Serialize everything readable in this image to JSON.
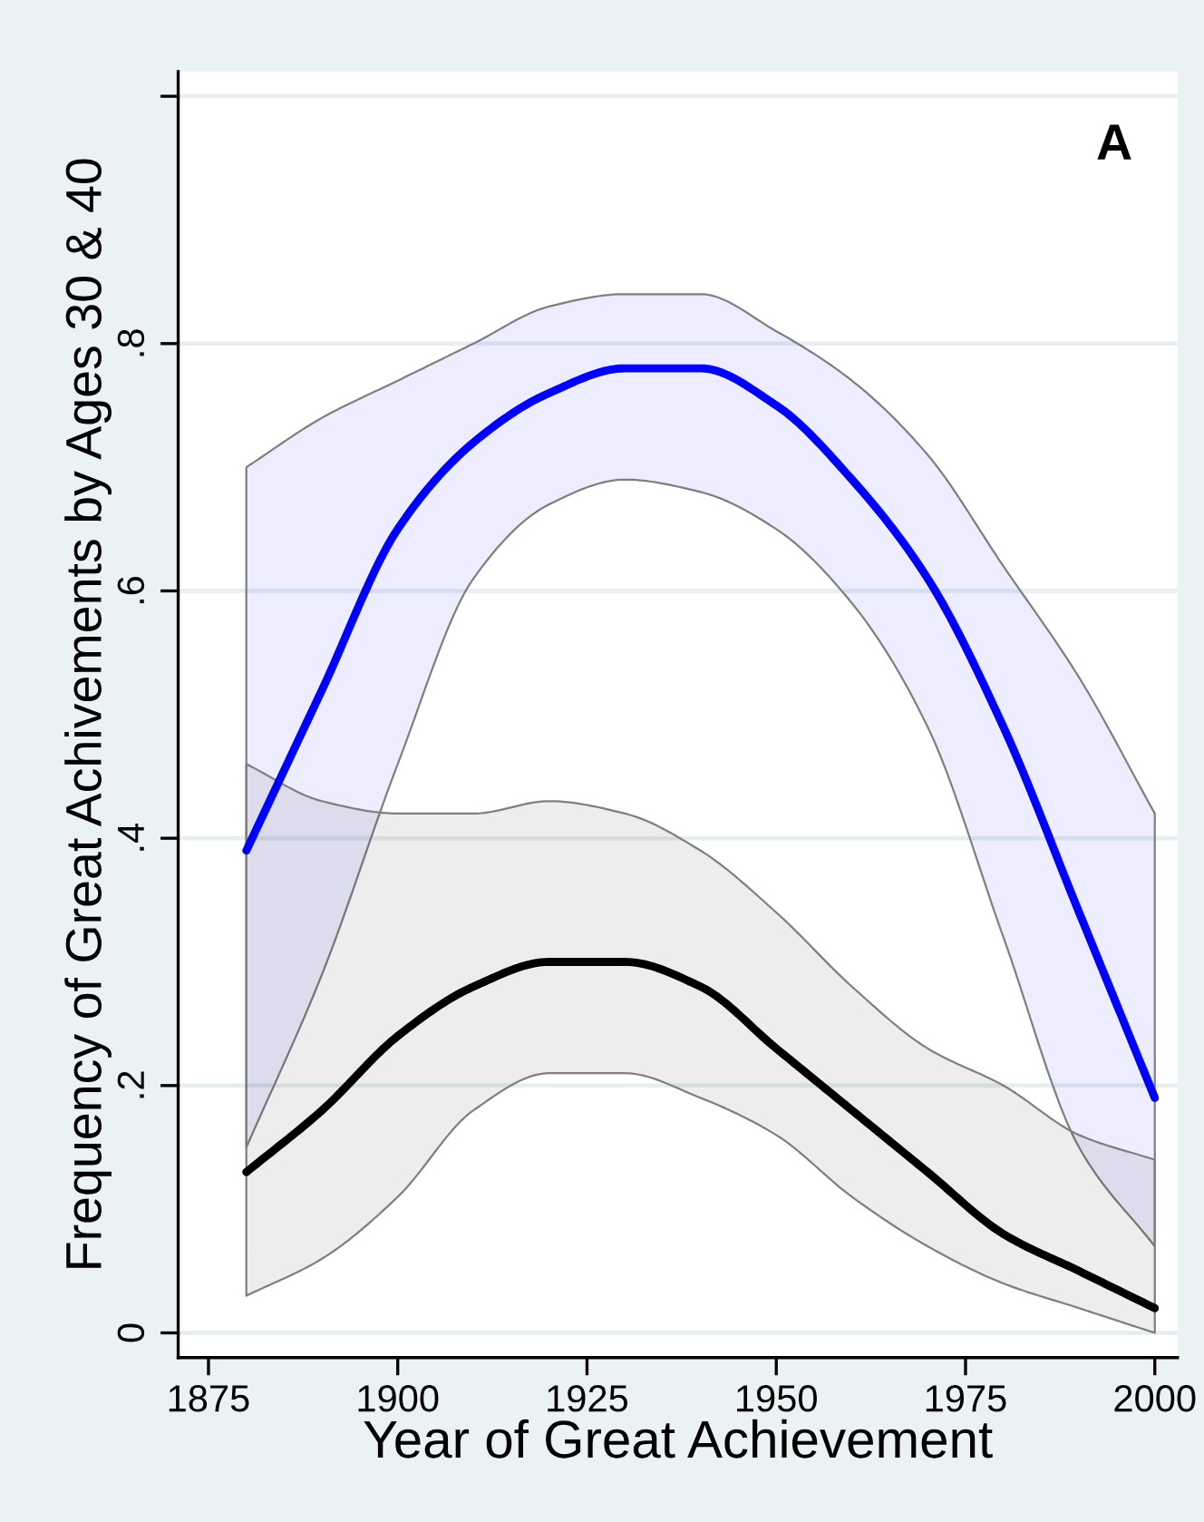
{
  "chart_data": {
    "type": "line",
    "xlabel": "Year of Great Achievement",
    "ylabel": "Frequency of Great Achivements by Ages 30 & 40",
    "x": [
      1880,
      1890,
      1900,
      1910,
      1920,
      1930,
      1940,
      1950,
      1960,
      1970,
      1980,
      1990,
      2000
    ],
    "series": [
      {
        "color": "#0000ff",
        "values": [
          0.39,
          0.52,
          0.65,
          0.72,
          0.76,
          0.78,
          0.78,
          0.75,
          0.69,
          0.61,
          0.49,
          0.34,
          0.19
        ],
        "lower": [
          0.15,
          0.29,
          0.46,
          0.61,
          0.67,
          0.69,
          0.68,
          0.65,
          0.59,
          0.49,
          0.32,
          0.15,
          0.07
        ],
        "upper": [
          0.7,
          0.74,
          0.77,
          0.8,
          0.83,
          0.84,
          0.84,
          0.81,
          0.77,
          0.71,
          0.62,
          0.53,
          0.42
        ]
      },
      {
        "color": "#000000",
        "values": [
          0.13,
          0.18,
          0.24,
          0.28,
          0.3,
          0.3,
          0.28,
          0.23,
          0.18,
          0.13,
          0.08,
          0.05,
          0.02
        ],
        "lower": [
          0.03,
          0.06,
          0.11,
          0.18,
          0.21,
          0.21,
          0.19,
          0.16,
          0.11,
          0.07,
          0.04,
          0.02,
          0.0
        ],
        "upper": [
          0.46,
          0.43,
          0.42,
          0.42,
          0.43,
          0.42,
          0.39,
          0.34,
          0.28,
          0.23,
          0.2,
          0.16,
          0.14
        ]
      }
    ],
    "xlim": [
      1871,
      2003
    ],
    "xticks": [
      1875,
      1900,
      1925,
      1950,
      1975,
      2000
    ],
    "ylim": [
      -0.02,
      1.02
    ],
    "yticks": [
      {
        "value": 0,
        "label": "0"
      },
      {
        "value": 0.2,
        "label": ".2"
      },
      {
        "value": 0.4,
        "label": ".4"
      },
      {
        "value": 0.6,
        "label": ".6"
      },
      {
        "value": 0.8,
        "label": ".8"
      },
      {
        "value": 1,
        "label": null
      }
    ],
    "grid": "y",
    "legend": false,
    "marker": "none",
    "line_style": "solid",
    "annotations": [
      "A"
    ]
  }
}
